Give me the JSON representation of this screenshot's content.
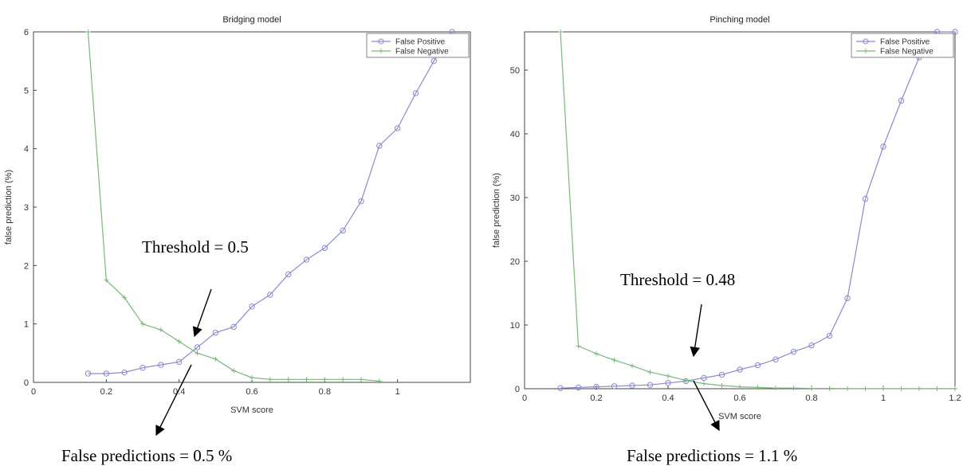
{
  "chart_data": [
    {
      "type": "line",
      "title": "Bridging model",
      "xlabel": "SVM score",
      "ylabel": "false prediction (%)",
      "xlim": [
        0,
        1.2
      ],
      "ylim": [
        0,
        6
      ],
      "xticks": [
        0,
        0.2,
        0.4,
        0.6,
        0.8,
        1
      ],
      "xtick_labels": [
        "0",
        "0.2",
        "0.4",
        "0.6",
        "0.8",
        "1"
      ],
      "yticks": [
        0,
        1,
        2,
        3,
        4,
        5,
        6
      ],
      "ytick_labels": [
        "0",
        "1",
        "2",
        "3",
        "4",
        "5",
        "6"
      ],
      "legend_position": "top-right",
      "series": [
        {
          "name": "False Positive",
          "color": "#8a8ad0",
          "marker": "circle",
          "x": [
            0.15,
            0.2,
            0.25,
            0.3,
            0.35,
            0.4,
            0.45,
            0.5,
            0.55,
            0.6,
            0.65,
            0.7,
            0.75,
            0.8,
            0.85,
            0.9,
            0.95,
            1.0,
            1.05,
            1.1,
            1.15
          ],
          "y": [
            0.15,
            0.15,
            0.17,
            0.25,
            0.3,
            0.35,
            0.6,
            0.85,
            0.95,
            1.3,
            1.5,
            1.85,
            2.1,
            2.3,
            2.6,
            3.1,
            4.05,
            4.35,
            4.95,
            5.5,
            6.0
          ]
        },
        {
          "name": "False Negative",
          "color": "#7ab87a",
          "marker": "plus",
          "x": [
            0.15,
            0.2,
            0.25,
            0.3,
            0.35,
            0.4,
            0.45,
            0.5,
            0.55,
            0.6,
            0.65,
            0.7,
            0.75,
            0.8,
            0.85,
            0.9,
            0.95
          ],
          "y": [
            6.0,
            1.75,
            1.45,
            1.0,
            0.9,
            0.7,
            0.5,
            0.4,
            0.2,
            0.08,
            0.05,
            0.05,
            0.05,
            0.05,
            0.05,
            0.05,
            0.02
          ]
        }
      ],
      "annotations": {
        "threshold": "Threshold = 0.5",
        "false_predictions": "False predictions = 0.5 %"
      }
    },
    {
      "type": "line",
      "title": "Pinching model",
      "xlabel": "SVM score",
      "ylabel": "false prediction (%)",
      "xlim": [
        0,
        1.2
      ],
      "ylim": [
        0,
        56
      ],
      "xticks": [
        0,
        0.2,
        0.4,
        0.6,
        0.8,
        1,
        1.2
      ],
      "xtick_labels": [
        "0",
        "0.2",
        "0.4",
        "0.6",
        "0.8",
        "1",
        "1.2"
      ],
      "yticks": [
        0,
        10,
        20,
        30,
        40,
        50
      ],
      "ytick_labels": [
        "0",
        "10",
        "20",
        "30",
        "40",
        "50"
      ],
      "legend_position": "top-right",
      "series": [
        {
          "name": "False Positive",
          "color": "#8a8ad0",
          "marker": "circle",
          "x": [
            0.1,
            0.15,
            0.2,
            0.25,
            0.3,
            0.35,
            0.4,
            0.45,
            0.5,
            0.55,
            0.6,
            0.65,
            0.7,
            0.75,
            0.8,
            0.85,
            0.9,
            0.95,
            1.0,
            1.05,
            1.1,
            1.15,
            1.2
          ],
          "y": [
            0.1,
            0.2,
            0.3,
            0.4,
            0.5,
            0.6,
            0.9,
            1.2,
            1.7,
            2.2,
            3.0,
            3.7,
            4.6,
            5.8,
            6.8,
            8.3,
            14.2,
            29.8,
            38.0,
            45.2,
            52.0,
            56.0,
            56.0
          ]
        },
        {
          "name": "False Negative",
          "color": "#7ab87a",
          "marker": "plus",
          "x": [
            0.1,
            0.15,
            0.2,
            0.25,
            0.3,
            0.35,
            0.4,
            0.45,
            0.5,
            0.55,
            0.6,
            0.65,
            0.7,
            0.75,
            0.8,
            0.85,
            0.9,
            0.95,
            1.0,
            1.05,
            1.1,
            1.15,
            1.2
          ],
          "y": [
            56.0,
            6.7,
            5.5,
            4.5,
            3.6,
            2.6,
            2.0,
            1.3,
            0.8,
            0.5,
            0.3,
            0.2,
            0.1,
            0.1,
            0.05,
            0.05,
            0.02,
            0.02,
            0.02,
            0.02,
            0.02,
            0.02,
            0.02
          ]
        }
      ],
      "annotations": {
        "threshold": "Threshold = 0.48",
        "false_predictions": "False predictions = 1.1 %"
      }
    }
  ]
}
